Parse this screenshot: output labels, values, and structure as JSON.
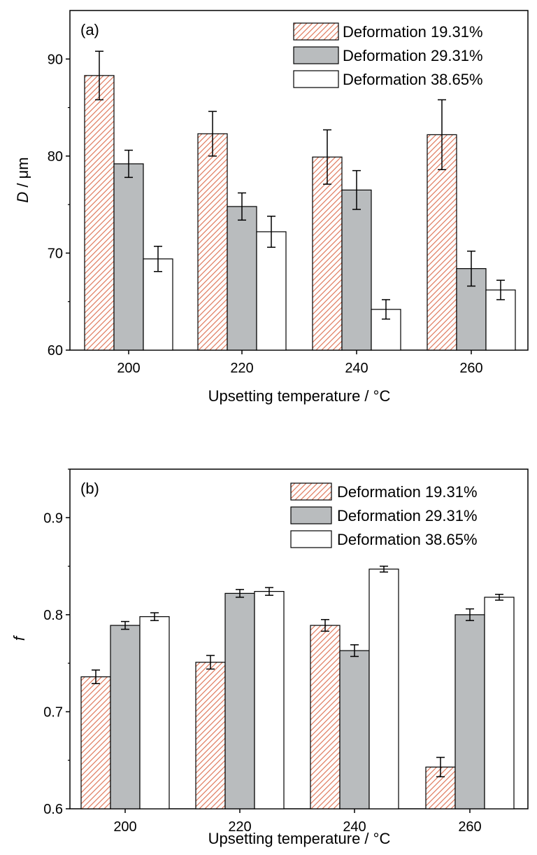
{
  "chart_data": [
    {
      "type": "bar",
      "panel_label": "(a)",
      "categories": [
        "200",
        "220",
        "240",
        "260"
      ],
      "series": [
        {
          "name": "Deformation 19.31%",
          "values": [
            88.3,
            82.3,
            79.9,
            82.2
          ],
          "errors": [
            2.5,
            2.3,
            2.8,
            3.6
          ]
        },
        {
          "name": "Deformation 29.31%",
          "values": [
            79.2,
            74.8,
            76.5,
            68.4
          ],
          "errors": [
            1.4,
            1.4,
            2.0,
            1.8
          ]
        },
        {
          "name": "Deformation 38.65%",
          "values": [
            69.4,
            72.2,
            64.2,
            66.2
          ],
          "errors": [
            1.3,
            1.6,
            1.0,
            1.0
          ]
        }
      ],
      "xlabel": "Upsetting temperature / °C",
      "ylabel_italic": "D",
      "ylabel_rest": " / μm",
      "ylim": [
        60,
        95
      ],
      "yticks": [
        "60",
        "70",
        "80",
        "90"
      ],
      "legend_position": "top-right"
    },
    {
      "type": "bar",
      "panel_label": "(b)",
      "categories": [
        "200",
        "220",
        "240",
        "260"
      ],
      "series": [
        {
          "name": "Deformation 19.31%",
          "values": [
            0.736,
            0.751,
            0.789,
            0.643
          ],
          "errors": [
            0.007,
            0.007,
            0.006,
            0.01
          ]
        },
        {
          "name": "Deformation 29.31%",
          "values": [
            0.789,
            0.822,
            0.763,
            0.8
          ],
          "errors": [
            0.004,
            0.004,
            0.006,
            0.006
          ]
        },
        {
          "name": "Deformation 38.65%",
          "values": [
            0.798,
            0.824,
            0.847,
            0.818
          ],
          "errors": [
            0.004,
            0.004,
            0.003,
            0.003
          ]
        }
      ],
      "xlabel": "Upsetting temperature / °C",
      "ylabel_italic": "f",
      "ylabel_rest": "",
      "ylim": [
        0.6,
        0.95
      ],
      "yticks": [
        "0.6",
        "0.7",
        "0.8",
        "0.9"
      ],
      "legend_position": "top-right"
    }
  ],
  "colors": {
    "hatch": "#e07b5f",
    "series2_fill": "#b9bcbe",
    "series3_fill": "#ffffff",
    "axis": "#000000"
  }
}
